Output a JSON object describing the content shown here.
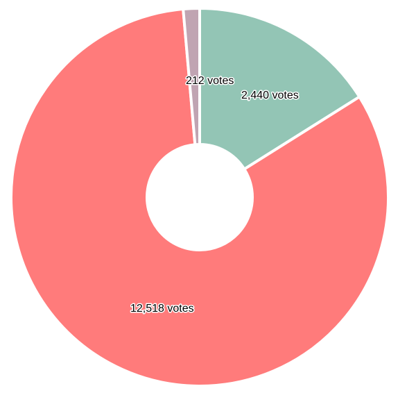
{
  "chart_data": {
    "type": "pie",
    "variant": "donut",
    "legend": "none",
    "slices": [
      {
        "value": 2440,
        "label": "2,440 votes",
        "color": "#93c5b5"
      },
      {
        "value": 12518,
        "label": "12,518 votes",
        "color": "#ff7b7b"
      },
      {
        "value": 212,
        "label": "212 votes",
        "color": "#c0a4b2"
      }
    ]
  }
}
